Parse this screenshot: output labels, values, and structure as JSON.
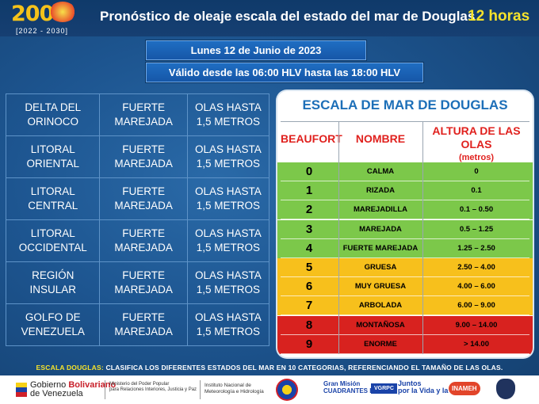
{
  "header": {
    "logo_number": "200",
    "logo_years": "[2022 - 2030]",
    "title": "Pronóstico de oleaje escala del estado del mar de Douglas",
    "hours": "12 horas"
  },
  "date_label": "Lunes 12 de Junio de 2023",
  "validity_label": "Válido desde las 06:00 HLV hasta las 18:00 HLV",
  "regions": [
    {
      "zone": [
        "DELTA DEL",
        "ORINOCO"
      ],
      "state": [
        "FUERTE",
        "MAREJADA"
      ],
      "waves": [
        "OLAS HASTA",
        "1,5 METROS"
      ]
    },
    {
      "zone": [
        "LITORAL",
        "ORIENTAL"
      ],
      "state": [
        "FUERTE",
        "MAREJADA"
      ],
      "waves": [
        "OLAS HASTA",
        "1,5 METROS"
      ]
    },
    {
      "zone": [
        "LITORAL",
        "CENTRAL"
      ],
      "state": [
        "FUERTE",
        "MAREJADA"
      ],
      "waves": [
        "OLAS HASTA",
        "1,5 METROS"
      ]
    },
    {
      "zone": [
        "LITORAL",
        "OCCIDENTAL"
      ],
      "state": [
        "FUERTE",
        "MAREJADA"
      ],
      "waves": [
        "OLAS HASTA",
        "1,5 METROS"
      ]
    },
    {
      "zone": [
        "REGIÓN",
        "INSULAR"
      ],
      "state": [
        "FUERTE",
        "MAREJADA"
      ],
      "waves": [
        "OLAS HASTA",
        "1,5 METROS"
      ]
    },
    {
      "zone": [
        "GOLFO DE",
        "VENEZUELA"
      ],
      "state": [
        "FUERTE",
        "MAREJADA"
      ],
      "waves": [
        "OLAS HASTA",
        "1,5 METROS"
      ]
    }
  ],
  "scale": {
    "title": "ESCALA DE MAR DE DOUGLAS",
    "col_beaufort": "BEAUFORT",
    "col_name": "NOMBRE",
    "col_height": "ALTURA DE LAS OLAS",
    "col_height_unit": "(metros)",
    "rows": [
      {
        "level": "0",
        "name": "CALMA",
        "height": "0",
        "color": "#7cc84a"
      },
      {
        "level": "1",
        "name": "RIZADA",
        "height": "0.1",
        "color": "#7cc84a"
      },
      {
        "level": "2",
        "name": "MAREJADILLA",
        "height": "0.1 – 0.50",
        "color": "#7cc84a"
      },
      {
        "level": "3",
        "name": "MAREJADA",
        "height": "0.5 – 1.25",
        "color": "#7cc84a"
      },
      {
        "level": "4",
        "name": "FUERTE MAREJADA",
        "height": "1.25 – 2.50",
        "color": "#7cc84a"
      },
      {
        "level": "5",
        "name": "GRUESA",
        "height": "2.50 – 4.00",
        "color": "#f7c01c"
      },
      {
        "level": "6",
        "name": "MUY GRUESA",
        "height": "4.00 – 6.00",
        "color": "#f7c01c"
      },
      {
        "level": "7",
        "name": "ARBOLADA",
        "height": "6.00 – 9.00",
        "color": "#f7c01c"
      },
      {
        "level": "8",
        "name": "MONTAÑOSA",
        "height": "9.00 – 14.00",
        "color": "#d8221f"
      },
      {
        "level": "9",
        "name": "ENORME",
        "height": "> 14.00",
        "color": "#d8221f"
      }
    ]
  },
  "note_label": "ESCALA DOUGLAS:",
  "note_text": "CLASIFICA LOS DIFERENTES ESTADOS DEL MAR EN 10 CATEGORIAS, REFERENCIANDO EL TAMAÑO DE LAS OLAS.",
  "footer": {
    "gob_line1_a": "Gobierno ",
    "gob_line1_b": "Bolivariano",
    "gob_line2": "de Venezuela",
    "ministry_1": "Ministerio del Poder Popular",
    "ministry_2": "para Relaciones Interiores, Justicia y Paz",
    "institute_1": "Instituto Nacional de",
    "institute_2": "Meteorología e Hidrología",
    "logo_cuadrantes": [
      "Gran Misión",
      "CUADRANTES DE PAZ"
    ],
    "logo_vgrpc": "VGRPC",
    "logo_juntos": [
      "Juntos",
      "por la Vida",
      "y la Paz"
    ],
    "logo_inameh": "INAMEH"
  }
}
